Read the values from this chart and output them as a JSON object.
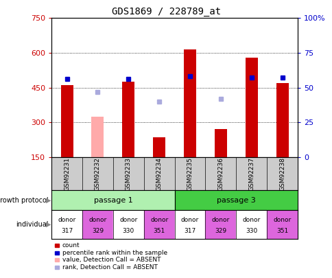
{
  "title": "GDS1869 / 228789_at",
  "samples": [
    "GSM92231",
    "GSM92232",
    "GSM92233",
    "GSM92234",
    "GSM92235",
    "GSM92236",
    "GSM92237",
    "GSM92238"
  ],
  "count_values": [
    460,
    325,
    475,
    235,
    615,
    270,
    580,
    470
  ],
  "count_absent": [
    false,
    true,
    false,
    false,
    false,
    false,
    false,
    false
  ],
  "percentile_values": [
    56,
    47,
    56,
    40,
    58,
    42,
    57,
    57
  ],
  "percentile_absent": [
    false,
    true,
    false,
    true,
    false,
    true,
    false,
    false
  ],
  "ylim_left": [
    150,
    750
  ],
  "ylim_right": [
    0,
    100
  ],
  "yticks_left": [
    150,
    300,
    450,
    600,
    750
  ],
  "yticks_right": [
    0,
    25,
    50,
    75,
    100
  ],
  "individual": [
    "317",
    "329",
    "330",
    "351",
    "317",
    "329",
    "330",
    "351"
  ],
  "passage1_color": "#b0f0b0",
  "passage3_color": "#44cc44",
  "donor_colors": [
    "#ffffff",
    "#dd66dd",
    "#ffffff",
    "#dd66dd",
    "#ffffff",
    "#dd66dd",
    "#ffffff",
    "#dd66dd"
  ],
  "bar_color_present": "#cc0000",
  "bar_color_absent": "#ffaaaa",
  "dot_color_present": "#0000cc",
  "dot_color_absent": "#aaaadd",
  "legend_items": [
    {
      "color": "#cc0000",
      "label": "count"
    },
    {
      "color": "#0000cc",
      "label": "percentile rank within the sample"
    },
    {
      "color": "#ffaaaa",
      "label": "value, Detection Call = ABSENT"
    },
    {
      "color": "#aaaadd",
      "label": "rank, Detection Call = ABSENT"
    }
  ],
  "bg_color": "#ffffff",
  "ytick_color_left": "#cc0000",
  "ytick_color_right": "#0000cc",
  "sample_bg_color": "#cccccc"
}
